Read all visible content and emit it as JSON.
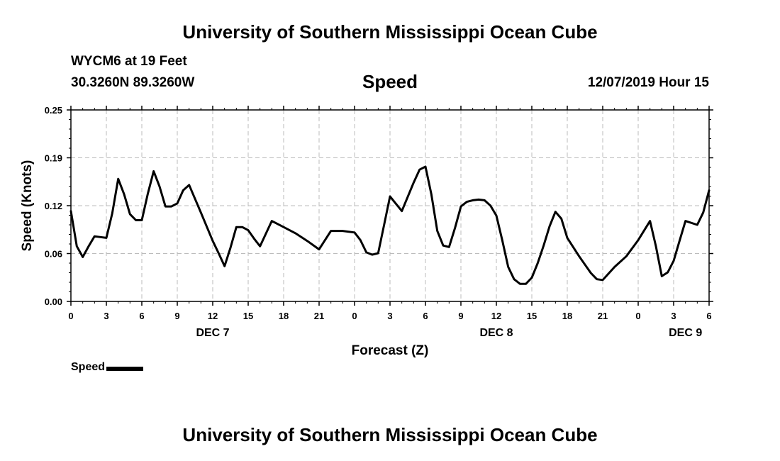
{
  "header": {
    "title": "University of Southern Mississippi Ocean Cube",
    "station": "WYCM6 at 19 Feet",
    "coords": "30.3260N 89.3260W",
    "subtitle": "Speed",
    "runtime": "12/07/2019 Hour 15"
  },
  "footer": {
    "title": "University of Southern Mississippi Ocean Cube"
  },
  "legend": {
    "label": "Speed"
  },
  "chart_data": {
    "type": "line",
    "xlabel": "Forecast (Z)",
    "ylabel": "Speed (Knots)",
    "ylim": [
      0,
      0.25
    ],
    "xlim": [
      0,
      54
    ],
    "yticks": [
      "0.00",
      "0.06",
      "0.12",
      "0.19",
      "0.25"
    ],
    "xticks": [
      "0",
      "3",
      "6",
      "9",
      "12",
      "15",
      "18",
      "21",
      "0",
      "3",
      "6",
      "9",
      "12",
      "15",
      "18",
      "21",
      "0",
      "3",
      "6"
    ],
    "day_labels": [
      {
        "label": "DEC 7",
        "hours_since_start": 12
      },
      {
        "label": "DEC 8",
        "hours_since_start": 36
      },
      {
        "label": "DEC 9",
        "hours_since_start": 52
      }
    ],
    "grid": true,
    "series": [
      {
        "name": "Speed",
        "color": "#000000",
        "x": [
          0,
          0.5,
          1,
          1.5,
          2,
          2.5,
          3,
          3.5,
          4,
          4.5,
          5,
          5.5,
          6,
          6.5,
          7,
          7.5,
          8,
          8.5,
          9,
          9.5,
          10,
          11,
          12,
          12.5,
          13,
          13.5,
          14,
          14.5,
          15,
          15.5,
          16,
          17,
          18,
          19,
          20,
          21,
          22,
          23,
          24,
          24.5,
          25,
          25.5,
          26,
          26.5,
          27,
          28,
          29,
          29.5,
          30,
          30.5,
          31,
          31.5,
          32,
          32.5,
          33,
          33.5,
          34,
          34.5,
          35,
          35.5,
          36,
          36.5,
          37,
          37.5,
          38,
          38.5,
          39,
          39.5,
          40,
          40.5,
          41,
          41.5,
          42,
          42.5,
          43,
          43.5,
          44,
          44.5,
          45,
          46,
          47,
          48,
          49,
          49.5,
          50,
          50.5,
          51,
          51.5,
          52,
          53,
          53.5,
          54
        ],
        "values": [
          0.118,
          0.072,
          0.058,
          0.072,
          0.085,
          0.084,
          0.083,
          0.115,
          0.16,
          0.14,
          0.114,
          0.106,
          0.106,
          0.14,
          0.17,
          0.15,
          0.124,
          0.124,
          0.128,
          0.145,
          0.152,
          0.116,
          0.079,
          0.063,
          0.046,
          0.07,
          0.097,
          0.097,
          0.093,
          0.082,
          0.072,
          0.105,
          0.097,
          0.089,
          0.079,
          0.068,
          0.092,
          0.092,
          0.09,
          0.08,
          0.064,
          0.061,
          0.063,
          0.1,
          0.137,
          0.118,
          0.155,
          0.172,
          0.176,
          0.14,
          0.092,
          0.073,
          0.071,
          0.096,
          0.124,
          0.13,
          0.132,
          0.133,
          0.132,
          0.125,
          0.112,
          0.08,
          0.045,
          0.029,
          0.023,
          0.023,
          0.031,
          0.05,
          0.073,
          0.098,
          0.117,
          0.108,
          0.083,
          0.071,
          0.059,
          0.048,
          0.037,
          0.029,
          0.028,
          0.045,
          0.059,
          0.08,
          0.105,
          0.072,
          0.033,
          0.038,
          0.053,
          0.079,
          0.105,
          0.1,
          0.116,
          0.145
        ]
      }
    ]
  }
}
